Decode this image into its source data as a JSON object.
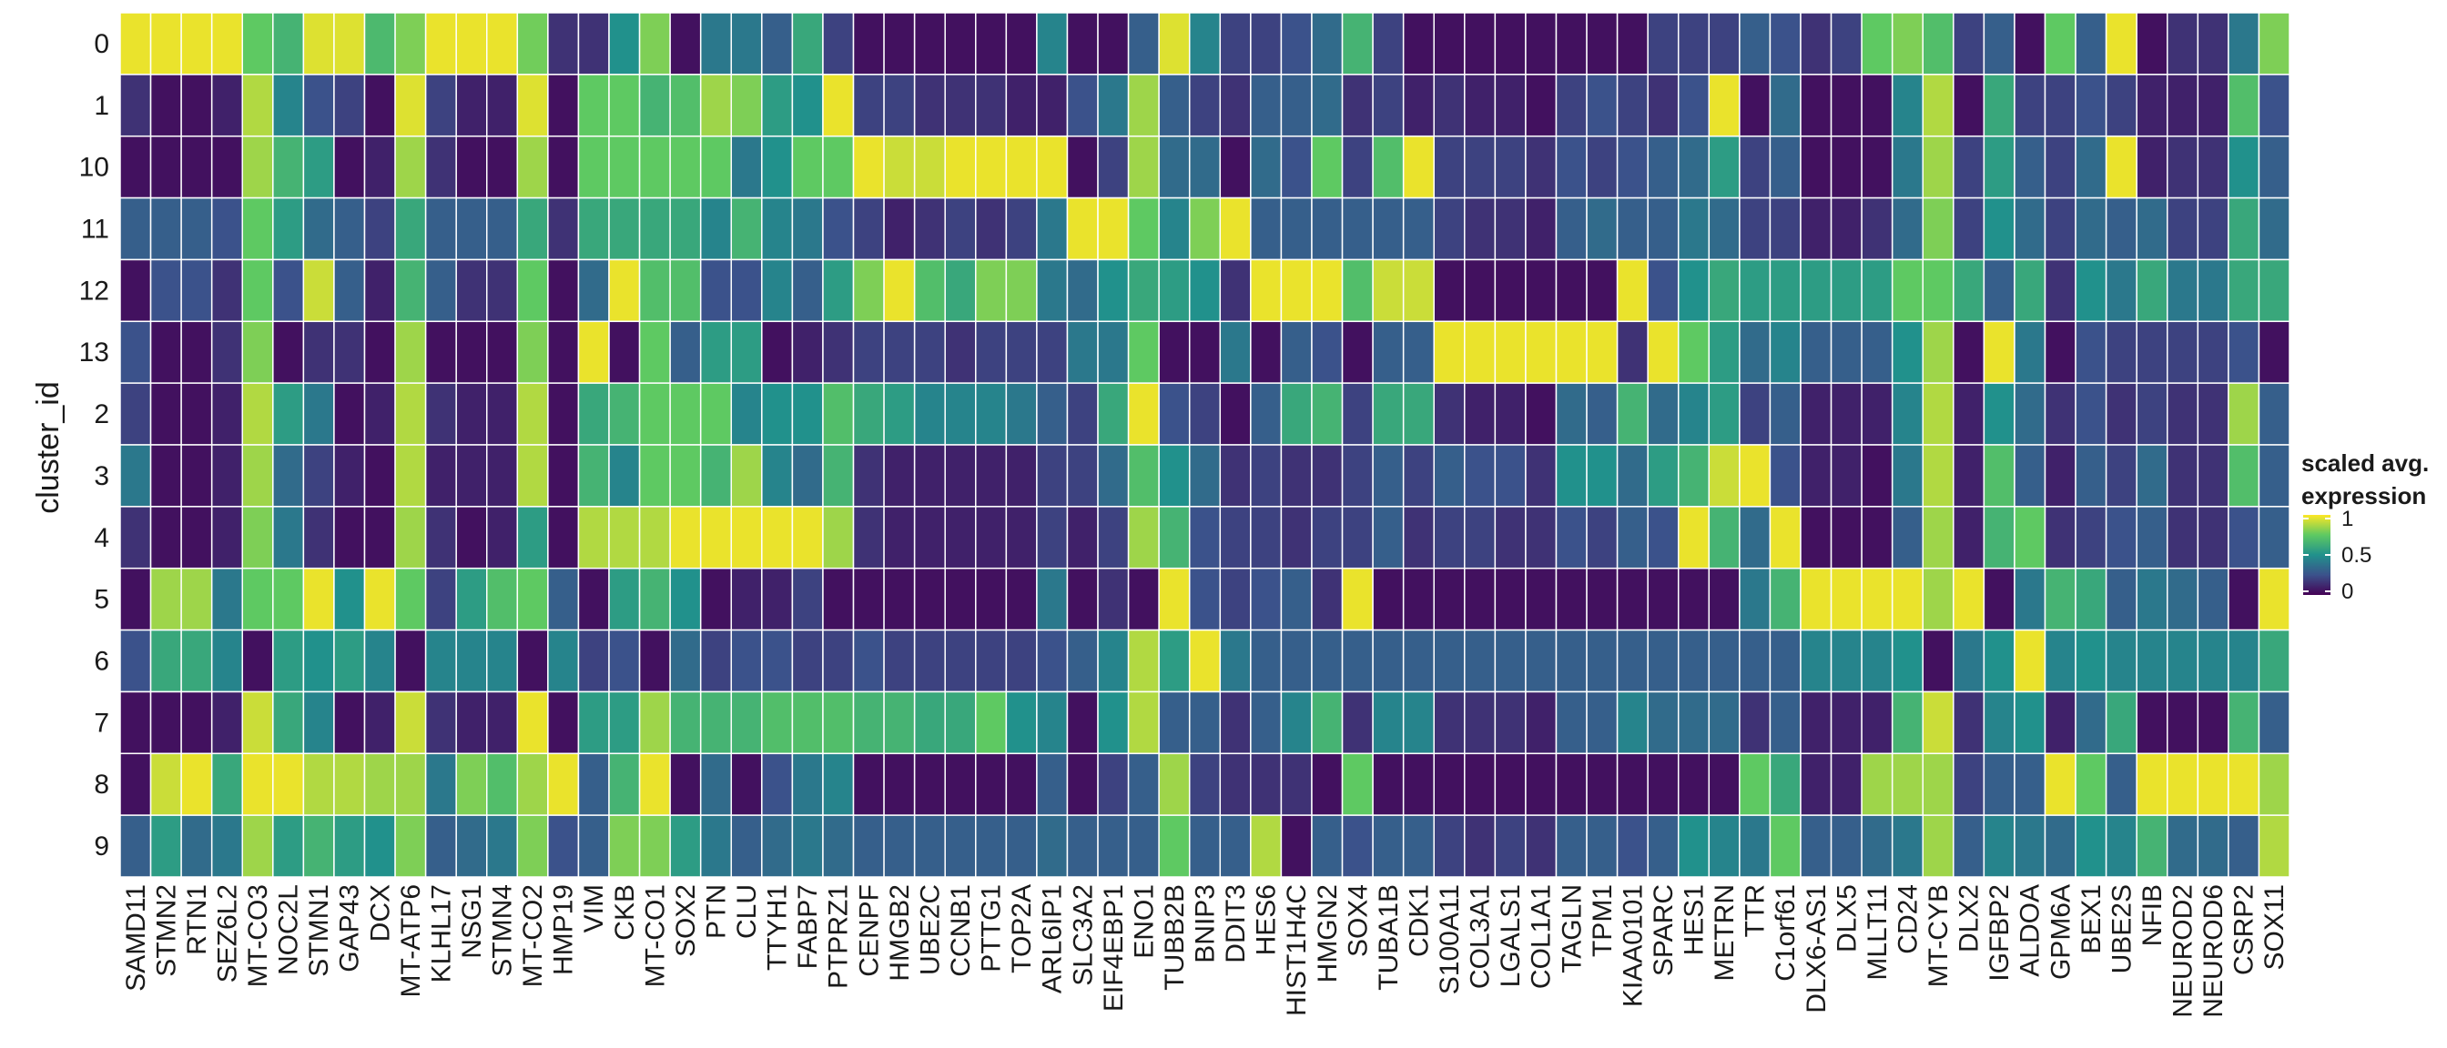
{
  "chart_data": {
    "type": "heatmap",
    "ylabel": "cluster_id",
    "xlabel": "",
    "genes": [
      "SAMD11",
      "STMN2",
      "RTN1",
      "SEZ6L2",
      "MT-CO3",
      "NOC2L",
      "STMN1",
      "GAP43",
      "DCX",
      "MT-ATP6",
      "KLHL17",
      "NSG1",
      "STMN4",
      "MT-CO2",
      "HMP19",
      "VIM",
      "CKB",
      "MT-CO1",
      "SOX2",
      "PTN",
      "CLU",
      "TTYH1",
      "FABP7",
      "PTPRZ1",
      "CENPF",
      "HMGB2",
      "UBE2C",
      "CCNB1",
      "PTTG1",
      "TOP2A",
      "ARL6IP1",
      "SLC3A2",
      "EIF4EBP1",
      "ENO1",
      "TUBB2B",
      "BNIP3",
      "DDIT3",
      "HES6",
      "HIST1H4C",
      "HMGN2",
      "SOX4",
      "TUBA1B",
      "CDK1",
      "S100A11",
      "COL3A1",
      "LGALS1",
      "COL1A1",
      "TAGLN",
      "TPM1",
      "KIAA0101",
      "SPARC",
      "HES1",
      "METRN",
      "TTR",
      "C1orf61",
      "DLX6-AS1",
      "DLX5",
      "MLLT11",
      "CD24",
      "MT-CYB",
      "DLX2",
      "IGFBP2",
      "ALDOA",
      "GPM6A",
      "BEX1",
      "UBE2S",
      "NFIB",
      "NEUROD2",
      "NEUROD6",
      "CSRP2",
      "SOX11"
    ],
    "clusters": [
      "0",
      "1",
      "10",
      "11",
      "12",
      "13",
      "2",
      "3",
      "4",
      "5",
      "6",
      "7",
      "8",
      "9"
    ],
    "values": [
      [
        0.97,
        0.97,
        0.97,
        0.97,
        0.75,
        0.65,
        0.95,
        0.95,
        0.68,
        0.8,
        0.97,
        0.97,
        0.97,
        0.78,
        0.15,
        0.15,
        0.5,
        0.8,
        0.05,
        0.4,
        0.4,
        0.3,
        0.6,
        0.2,
        0.05,
        0.05,
        0.05,
        0.05,
        0.05,
        0.05,
        0.45,
        0.05,
        0.05,
        0.3,
        0.95,
        0.45,
        0.2,
        0.2,
        0.25,
        0.35,
        0.65,
        0.2,
        0.05,
        0.05,
        0.05,
        0.05,
        0.05,
        0.05,
        0.05,
        0.05,
        0.2,
        0.2,
        0.2,
        0.3,
        0.25,
        0.15,
        0.2,
        0.75,
        0.8,
        0.7,
        0.2,
        0.3,
        0.05,
        0.75,
        0.3,
        0.97,
        0.05,
        0.15,
        0.15,
        0.4,
        0.8
      ],
      [
        0.15,
        0.05,
        0.05,
        0.1,
        0.88,
        0.45,
        0.25,
        0.2,
        0.05,
        0.95,
        0.2,
        0.1,
        0.1,
        0.95,
        0.05,
        0.75,
        0.75,
        0.65,
        0.7,
        0.85,
        0.8,
        0.55,
        0.5,
        0.97,
        0.2,
        0.2,
        0.15,
        0.15,
        0.15,
        0.1,
        0.1,
        0.25,
        0.4,
        0.85,
        0.3,
        0.2,
        0.15,
        0.3,
        0.3,
        0.35,
        0.15,
        0.2,
        0.1,
        0.15,
        0.1,
        0.1,
        0.05,
        0.2,
        0.25,
        0.2,
        0.15,
        0.25,
        0.97,
        0.05,
        0.35,
        0.05,
        0.05,
        0.05,
        0.45,
        0.88,
        0.05,
        0.6,
        0.2,
        0.2,
        0.25,
        0.2,
        0.1,
        0.1,
        0.1,
        0.7,
        0.25
      ],
      [
        0.05,
        0.05,
        0.05,
        0.05,
        0.85,
        0.65,
        0.55,
        0.05,
        0.1,
        0.85,
        0.15,
        0.05,
        0.05,
        0.85,
        0.05,
        0.75,
        0.75,
        0.75,
        0.75,
        0.75,
        0.4,
        0.5,
        0.75,
        0.75,
        0.97,
        0.92,
        0.92,
        0.97,
        0.97,
        0.97,
        0.97,
        0.05,
        0.2,
        0.85,
        0.35,
        0.35,
        0.05,
        0.35,
        0.25,
        0.75,
        0.2,
        0.7,
        0.97,
        0.2,
        0.2,
        0.2,
        0.15,
        0.25,
        0.2,
        0.25,
        0.3,
        0.35,
        0.55,
        0.2,
        0.3,
        0.05,
        0.05,
        0.05,
        0.4,
        0.85,
        0.2,
        0.55,
        0.3,
        0.2,
        0.35,
        0.97,
        0.1,
        0.15,
        0.15,
        0.5,
        0.3
      ],
      [
        0.3,
        0.3,
        0.3,
        0.25,
        0.75,
        0.55,
        0.35,
        0.3,
        0.2,
        0.6,
        0.3,
        0.3,
        0.3,
        0.6,
        0.15,
        0.6,
        0.6,
        0.6,
        0.6,
        0.45,
        0.65,
        0.45,
        0.4,
        0.25,
        0.2,
        0.1,
        0.15,
        0.2,
        0.15,
        0.2,
        0.4,
        0.97,
        0.97,
        0.75,
        0.45,
        0.8,
        0.97,
        0.3,
        0.3,
        0.3,
        0.3,
        0.3,
        0.3,
        0.2,
        0.15,
        0.15,
        0.1,
        0.3,
        0.35,
        0.3,
        0.3,
        0.4,
        0.35,
        0.2,
        0.2,
        0.1,
        0.1,
        0.15,
        0.35,
        0.8,
        0.2,
        0.5,
        0.35,
        0.2,
        0.35,
        0.3,
        0.35,
        0.2,
        0.2,
        0.6,
        0.35
      ],
      [
        0.05,
        0.25,
        0.25,
        0.15,
        0.75,
        0.25,
        0.92,
        0.3,
        0.1,
        0.65,
        0.3,
        0.15,
        0.15,
        0.75,
        0.05,
        0.35,
        0.97,
        0.7,
        0.7,
        0.25,
        0.25,
        0.45,
        0.3,
        0.55,
        0.8,
        0.97,
        0.7,
        0.6,
        0.8,
        0.8,
        0.4,
        0.35,
        0.5,
        0.6,
        0.55,
        0.5,
        0.15,
        0.97,
        0.97,
        0.97,
        0.7,
        0.92,
        0.92,
        0.05,
        0.05,
        0.05,
        0.05,
        0.05,
        0.05,
        0.97,
        0.25,
        0.5,
        0.6,
        0.55,
        0.55,
        0.55,
        0.55,
        0.55,
        0.75,
        0.75,
        0.6,
        0.3,
        0.6,
        0.15,
        0.5,
        0.4,
        0.6,
        0.4,
        0.4,
        0.6,
        0.6
      ],
      [
        0.25,
        0.05,
        0.05,
        0.15,
        0.8,
        0.05,
        0.15,
        0.15,
        0.05,
        0.85,
        0.05,
        0.05,
        0.05,
        0.8,
        0.05,
        0.97,
        0.05,
        0.75,
        0.3,
        0.55,
        0.55,
        0.05,
        0.1,
        0.15,
        0.2,
        0.2,
        0.2,
        0.15,
        0.2,
        0.2,
        0.2,
        0.4,
        0.4,
        0.75,
        0.05,
        0.05,
        0.4,
        0.05,
        0.3,
        0.25,
        0.05,
        0.3,
        0.3,
        0.97,
        0.97,
        0.97,
        0.97,
        0.97,
        0.97,
        0.15,
        0.97,
        0.75,
        0.55,
        0.35,
        0.45,
        0.3,
        0.3,
        0.3,
        0.5,
        0.85,
        0.05,
        0.97,
        0.4,
        0.05,
        0.25,
        0.2,
        0.2,
        0.2,
        0.2,
        0.25,
        0.05
      ],
      [
        0.2,
        0.05,
        0.05,
        0.1,
        0.88,
        0.55,
        0.4,
        0.05,
        0.1,
        0.88,
        0.15,
        0.1,
        0.1,
        0.88,
        0.05,
        0.6,
        0.65,
        0.75,
        0.75,
        0.75,
        0.45,
        0.5,
        0.5,
        0.7,
        0.6,
        0.55,
        0.45,
        0.45,
        0.45,
        0.4,
        0.3,
        0.2,
        0.6,
        0.97,
        0.25,
        0.2,
        0.05,
        0.3,
        0.6,
        0.65,
        0.2,
        0.6,
        0.6,
        0.15,
        0.1,
        0.1,
        0.05,
        0.35,
        0.3,
        0.65,
        0.35,
        0.45,
        0.55,
        0.2,
        0.3,
        0.1,
        0.1,
        0.1,
        0.45,
        0.88,
        0.1,
        0.5,
        0.35,
        0.15,
        0.25,
        0.15,
        0.2,
        0.15,
        0.15,
        0.85,
        0.3
      ],
      [
        0.4,
        0.05,
        0.05,
        0.1,
        0.85,
        0.35,
        0.2,
        0.1,
        0.05,
        0.88,
        0.1,
        0.1,
        0.1,
        0.88,
        0.05,
        0.65,
        0.45,
        0.75,
        0.75,
        0.65,
        0.85,
        0.45,
        0.35,
        0.65,
        0.15,
        0.1,
        0.1,
        0.1,
        0.1,
        0.1,
        0.2,
        0.2,
        0.35,
        0.7,
        0.5,
        0.35,
        0.15,
        0.2,
        0.15,
        0.15,
        0.2,
        0.3,
        0.2,
        0.3,
        0.25,
        0.25,
        0.15,
        0.5,
        0.5,
        0.35,
        0.55,
        0.65,
        0.92,
        0.97,
        0.25,
        0.1,
        0.1,
        0.05,
        0.4,
        0.88,
        0.1,
        0.7,
        0.3,
        0.1,
        0.3,
        0.2,
        0.35,
        0.15,
        0.15,
        0.7,
        0.3
      ],
      [
        0.15,
        0.05,
        0.05,
        0.1,
        0.8,
        0.4,
        0.15,
        0.05,
        0.05,
        0.85,
        0.15,
        0.05,
        0.1,
        0.55,
        0.05,
        0.88,
        0.88,
        0.88,
        0.97,
        0.97,
        0.97,
        0.97,
        0.97,
        0.85,
        0.15,
        0.1,
        0.1,
        0.1,
        0.1,
        0.1,
        0.2,
        0.1,
        0.2,
        0.85,
        0.65,
        0.25,
        0.2,
        0.2,
        0.15,
        0.2,
        0.2,
        0.3,
        0.15,
        0.2,
        0.2,
        0.15,
        0.15,
        0.25,
        0.2,
        0.3,
        0.25,
        0.97,
        0.65,
        0.35,
        0.97,
        0.05,
        0.05,
        0.05,
        0.3,
        0.85,
        0.1,
        0.65,
        0.75,
        0.15,
        0.2,
        0.25,
        0.3,
        0.15,
        0.15,
        0.25,
        0.3
      ],
      [
        0.05,
        0.85,
        0.85,
        0.4,
        0.75,
        0.75,
        0.97,
        0.5,
        0.97,
        0.75,
        0.2,
        0.55,
        0.7,
        0.75,
        0.3,
        0.05,
        0.55,
        0.65,
        0.5,
        0.05,
        0.1,
        0.1,
        0.2,
        0.05,
        0.05,
        0.05,
        0.05,
        0.05,
        0.05,
        0.05,
        0.4,
        0.05,
        0.15,
        0.05,
        0.97,
        0.25,
        0.2,
        0.25,
        0.3,
        0.15,
        0.97,
        0.05,
        0.05,
        0.05,
        0.05,
        0.05,
        0.05,
        0.05,
        0.05,
        0.05,
        0.05,
        0.05,
        0.05,
        0.4,
        0.65,
        0.97,
        0.97,
        0.97,
        0.97,
        0.85,
        0.97,
        0.05,
        0.4,
        0.65,
        0.6,
        0.3,
        0.4,
        0.35,
        0.3,
        0.05,
        0.97
      ],
      [
        0.25,
        0.6,
        0.6,
        0.45,
        0.05,
        0.55,
        0.5,
        0.55,
        0.45,
        0.05,
        0.45,
        0.45,
        0.45,
        0.05,
        0.45,
        0.2,
        0.25,
        0.05,
        0.35,
        0.2,
        0.25,
        0.25,
        0.2,
        0.2,
        0.25,
        0.2,
        0.2,
        0.2,
        0.2,
        0.2,
        0.25,
        0.3,
        0.45,
        0.88,
        0.55,
        0.97,
        0.4,
        0.3,
        0.3,
        0.3,
        0.3,
        0.3,
        0.3,
        0.3,
        0.3,
        0.3,
        0.3,
        0.3,
        0.3,
        0.3,
        0.3,
        0.3,
        0.3,
        0.3,
        0.3,
        0.45,
        0.45,
        0.45,
        0.5,
        0.05,
        0.4,
        0.5,
        0.97,
        0.45,
        0.5,
        0.45,
        0.45,
        0.45,
        0.45,
        0.45,
        0.6
      ],
      [
        0.05,
        0.05,
        0.05,
        0.1,
        0.92,
        0.6,
        0.45,
        0.05,
        0.1,
        0.92,
        0.15,
        0.1,
        0.1,
        0.97,
        0.05,
        0.55,
        0.55,
        0.85,
        0.65,
        0.65,
        0.65,
        0.7,
        0.7,
        0.7,
        0.65,
        0.65,
        0.6,
        0.6,
        0.75,
        0.5,
        0.45,
        0.05,
        0.5,
        0.88,
        0.3,
        0.3,
        0.15,
        0.3,
        0.45,
        0.65,
        0.15,
        0.45,
        0.45,
        0.15,
        0.15,
        0.15,
        0.1,
        0.3,
        0.3,
        0.45,
        0.35,
        0.35,
        0.35,
        0.15,
        0.3,
        0.1,
        0.1,
        0.1,
        0.65,
        0.92,
        0.15,
        0.45,
        0.5,
        0.1,
        0.35,
        0.6,
        0.05,
        0.05,
        0.05,
        0.65,
        0.3
      ],
      [
        0.05,
        0.92,
        0.97,
        0.6,
        0.97,
        0.97,
        0.88,
        0.88,
        0.85,
        0.85,
        0.4,
        0.8,
        0.7,
        0.85,
        0.97,
        0.3,
        0.65,
        0.97,
        0.05,
        0.35,
        0.05,
        0.25,
        0.4,
        0.45,
        0.05,
        0.05,
        0.05,
        0.05,
        0.05,
        0.05,
        0.3,
        0.05,
        0.2,
        0.3,
        0.85,
        0.2,
        0.15,
        0.15,
        0.15,
        0.05,
        0.75,
        0.05,
        0.05,
        0.05,
        0.05,
        0.05,
        0.05,
        0.05,
        0.05,
        0.05,
        0.05,
        0.05,
        0.05,
        0.75,
        0.6,
        0.1,
        0.1,
        0.85,
        0.85,
        0.85,
        0.2,
        0.3,
        0.3,
        0.97,
        0.75,
        0.3,
        0.97,
        0.97,
        0.97,
        0.97,
        0.85
      ],
      [
        0.3,
        0.55,
        0.35,
        0.4,
        0.85,
        0.55,
        0.65,
        0.55,
        0.5,
        0.8,
        0.3,
        0.35,
        0.4,
        0.8,
        0.25,
        0.3,
        0.8,
        0.8,
        0.55,
        0.4,
        0.3,
        0.35,
        0.4,
        0.35,
        0.3,
        0.3,
        0.3,
        0.3,
        0.3,
        0.3,
        0.35,
        0.3,
        0.3,
        0.3,
        0.75,
        0.3,
        0.3,
        0.88,
        0.05,
        0.3,
        0.25,
        0.3,
        0.3,
        0.2,
        0.15,
        0.2,
        0.15,
        0.3,
        0.3,
        0.25,
        0.3,
        0.5,
        0.45,
        0.4,
        0.75,
        0.3,
        0.3,
        0.35,
        0.4,
        0.85,
        0.3,
        0.45,
        0.4,
        0.35,
        0.5,
        0.45,
        0.65,
        0.35,
        0.35,
        0.3,
        0.88
      ]
    ],
    "range": [
      0,
      1
    ],
    "colormap": "viridis",
    "legend": {
      "title_line1": "scaled avg.",
      "title_line2": "expression",
      "ticks": [
        "1",
        "0.5",
        "0"
      ],
      "placement": "right"
    }
  }
}
